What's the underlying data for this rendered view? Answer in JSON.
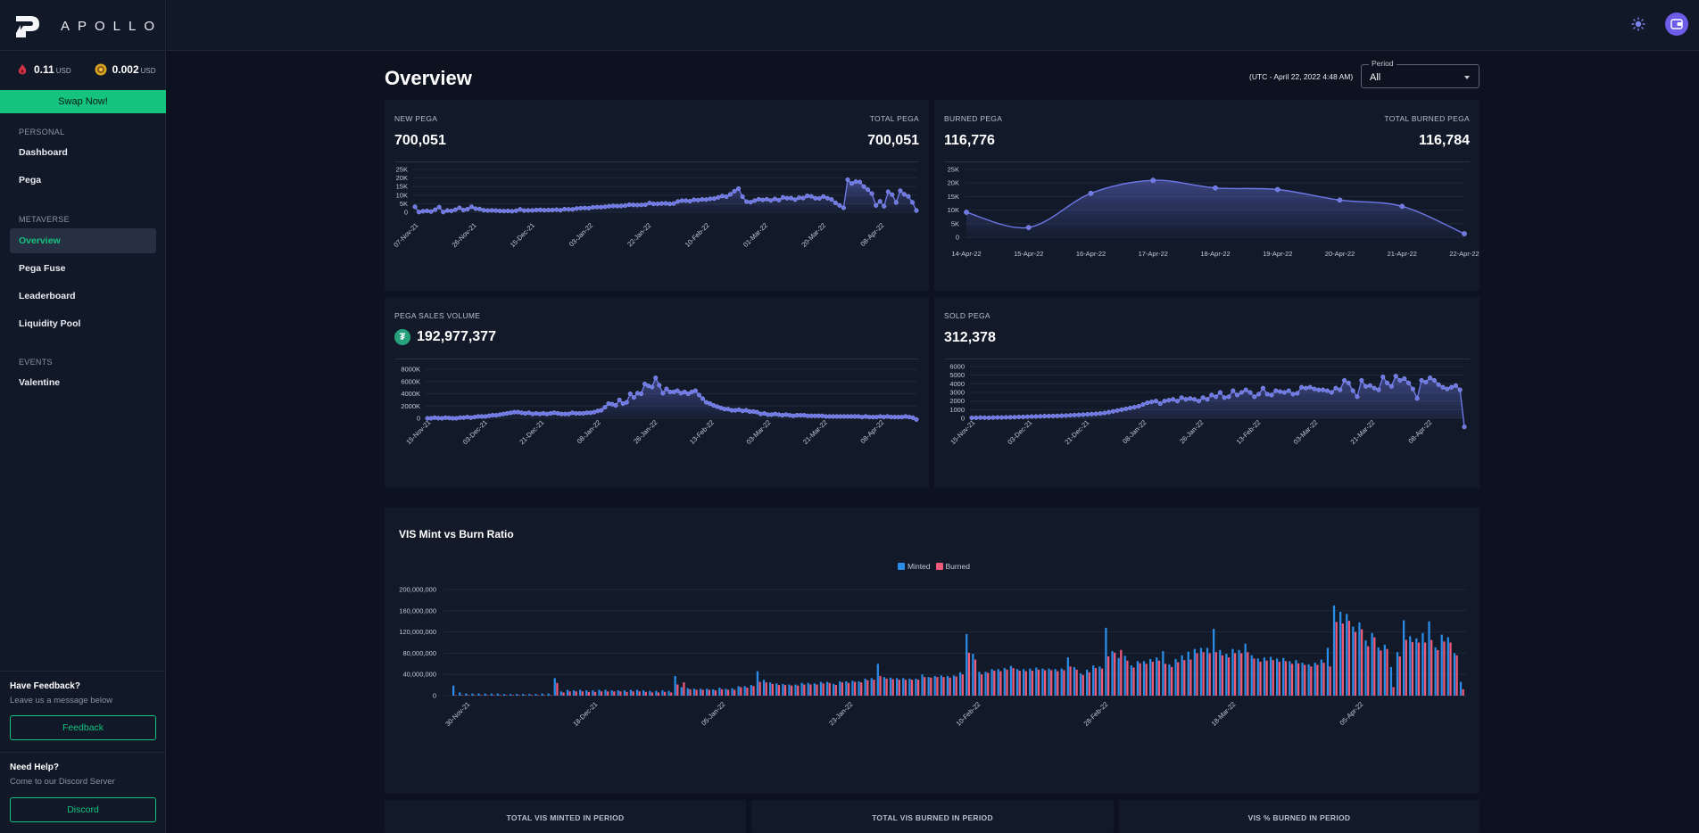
{
  "app": {
    "name": "APOLLO"
  },
  "prices": [
    {
      "value": "0.11",
      "unit": "USD",
      "icon": "vis-token-icon"
    },
    {
      "value": "0.002",
      "unit": "USD",
      "icon": "pgx-token-icon"
    }
  ],
  "swap_label": "Swap Now!",
  "nav": {
    "personal": "PERSONAL",
    "dashboard": "Dashboard",
    "pega": "Pega",
    "metaverse": "METAVERSE",
    "overview": "Overview",
    "pega_fuse": "Pega Fuse",
    "leaderboard": "Leaderboard",
    "liquidity_pool": "Liquidity Pool",
    "events": "EVENTS",
    "valentine": "Valentine"
  },
  "feedback": {
    "title": "Have Feedback?",
    "subtitle": "Leave us a message below",
    "button": "Feedback"
  },
  "help": {
    "title": "Need Help?",
    "subtitle": "Come to our Discord Server",
    "button": "Discord"
  },
  "colors": {
    "accent": "#14c37e",
    "line": "#6d77e6",
    "minted": "#2a8ce6",
    "burned": "#ee5a78"
  },
  "page": {
    "title": "Overview",
    "utc": "(UTC - April 22, 2022 4:48 AM)",
    "period_label": "Period",
    "period_value": "All"
  },
  "cards": {
    "new_pega": {
      "label": "NEW PEGA",
      "value": "700,051",
      "total_label": "TOTAL PEGA",
      "total_value": "700,051"
    },
    "burned_pega": {
      "label": "BURNED PEGA",
      "value": "116,776",
      "total_label": "TOTAL BURNED PEGA",
      "total_value": "116,784"
    },
    "sales_volume": {
      "label": "PEGA SALES VOLUME",
      "value": "192,977,377",
      "icon": "tether-icon"
    },
    "sold_pega": {
      "label": "SOLD PEGA",
      "value": "312,378"
    }
  },
  "stats": {
    "minted": "TOTAL VIS MINTED IN PERIOD",
    "burned": "TOTAL VIS BURNED IN PERIOD",
    "pct": "VIS % BURNED IN PERIOD"
  },
  "chart_data": [
    {
      "id": "new_pega",
      "type": "line",
      "x_ticks": [
        "07-Nov-21",
        "26-Nov-21",
        "15-Dec-21",
        "03-Jan-22",
        "22-Jan-22",
        "10-Feb-22",
        "01-Mar-22",
        "20-Mar-22",
        "08-Apr-22"
      ],
      "y_ticks": [
        "25K",
        "20K",
        "15K",
        "10K",
        "5K",
        "0"
      ],
      "ylim": [
        0,
        25000
      ],
      "values": [
        3200,
        100,
        600,
        800,
        400,
        1500,
        3000,
        100,
        1000,
        800,
        1500,
        2600,
        1300,
        1800,
        3200,
        2100,
        1900,
        1200,
        1000,
        1100,
        1000,
        800,
        700,
        800,
        600,
        900,
        1700,
        1000,
        1100,
        1100,
        1300,
        1400,
        1200,
        1300,
        1300,
        1500,
        1200,
        1800,
        1700,
        1700,
        2200,
        2400,
        2500,
        2400,
        2900,
        3000,
        3000,
        3200,
        3500,
        3700,
        3600,
        3700,
        3900,
        4400,
        4300,
        4200,
        4300,
        4400,
        5400,
        4900,
        4900,
        5100,
        5200,
        4900,
        5100,
        6300,
        6800,
        6800,
        6500,
        7300,
        7100,
        7500,
        7400,
        7900,
        8000,
        8700,
        9500,
        9100,
        10500,
        12300,
        13800,
        9100,
        6200,
        5900,
        6800,
        7600,
        7200,
        7600,
        6900,
        7800,
        7100,
        8700,
        8200,
        8300,
        7400,
        8500,
        8300,
        9600,
        9300,
        8200,
        8100,
        9200,
        8200,
        7500,
        5500,
        4000,
        2600,
        19000,
        16800,
        17900,
        17700,
        15000,
        13200,
        10900,
        4000,
        6400,
        3500,
        12000,
        10300,
        5700,
        12600,
        10500,
        9300,
        5800,
        1000
      ]
    },
    {
      "id": "burned_pega",
      "type": "line",
      "categories": [
        "14-Apr-22",
        "15-Apr-22",
        "16-Apr-22",
        "17-Apr-22",
        "18-Apr-22",
        "19-Apr-22",
        "20-Apr-22",
        "21-Apr-22",
        "22-Apr-22"
      ],
      "y_ticks": [
        "25K",
        "20K",
        "15K",
        "10K",
        "5K",
        "0"
      ],
      "ylim": [
        0,
        25000
      ],
      "values": [
        9200,
        3600,
        16200,
        21000,
        18200,
        17600,
        13700,
        11400,
        1300
      ]
    },
    {
      "id": "sales_volume",
      "type": "line",
      "x_ticks": [
        "15-Nov-21",
        "03-Dec-21",
        "21-Dec-21",
        "08-Jan-22",
        "26-Jan-22",
        "13-Feb-22",
        "03-Mar-22",
        "21-Mar-22",
        "08-Apr-22"
      ],
      "y_ticks": [
        "8000K",
        "6000K",
        "4000K",
        "2000K",
        "0"
      ],
      "ylim": [
        0,
        8000000
      ],
      "values": [
        0,
        0,
        100000,
        20000,
        0,
        100000,
        50000,
        0,
        0,
        100000,
        100000,
        200000,
        100000,
        200000,
        300000,
        300000,
        300000,
        400000,
        500000,
        500000,
        600000,
        700000,
        800000,
        900000,
        1000000,
        1000000,
        900000,
        800000,
        900000,
        700000,
        800000,
        700000,
        800000,
        700000,
        800000,
        900000,
        800000,
        700000,
        700000,
        700000,
        900000,
        800000,
        800000,
        800000,
        900000,
        900000,
        1000000,
        1200000,
        1300000,
        1800000,
        2400000,
        2300000,
        2100000,
        3000000,
        2400000,
        2600000,
        4000000,
        3400000,
        4100000,
        4000000,
        5600000,
        5300000,
        5100000,
        6600000,
        5400000,
        4100000,
        4800000,
        4300000,
        4300000,
        4500000,
        4100000,
        4300000,
        4000000,
        4300000,
        4500000,
        3800000,
        3200000,
        2600000,
        2400000,
        2100000,
        1900000,
        1700000,
        1500000,
        1500000,
        1300000,
        1300000,
        1400000,
        1200000,
        1300000,
        1100000,
        1100000,
        1000000,
        700000,
        800000,
        600000,
        600000,
        700000,
        600000,
        500000,
        600000,
        500000,
        400000,
        500000,
        500000,
        500000,
        400000,
        400000,
        400000,
        400000,
        400000,
        300000,
        300000,
        300000,
        300000,
        300000,
        300000,
        300000,
        300000,
        300000,
        300000,
        200000,
        300000,
        200000,
        200000,
        200000,
        300000,
        200000,
        300000,
        200000,
        200000,
        200000,
        200000,
        300000,
        200000,
        100000,
        -200000
      ]
    },
    {
      "id": "sold_pega",
      "type": "line",
      "x_ticks": [
        "15-Nov-21",
        "03-Dec-21",
        "21-Dec-21",
        "08-Jan-22",
        "26-Jan-22",
        "13-Feb-22",
        "03-Mar-22",
        "21-Mar-22",
        "08-Apr-22"
      ],
      "y_ticks": [
        "6000",
        "5000",
        "4000",
        "3000",
        "2000",
        "1000",
        "0"
      ],
      "ylim": [
        0,
        6000
      ],
      "values": [
        50,
        60,
        80,
        70,
        60,
        80,
        100,
        90,
        110,
        120,
        130,
        150,
        160,
        180,
        200,
        210,
        230,
        250,
        260,
        270,
        280,
        300,
        320,
        350,
        380,
        400,
        430,
        460,
        490,
        520,
        560,
        620,
        700,
        800,
        900,
        1000,
        1100,
        1200,
        1300,
        1400,
        1600,
        1800,
        1900,
        2000,
        1700,
        2000,
        2100,
        2200,
        2000,
        2400,
        2200,
        2300,
        2200,
        2000,
        2400,
        2200,
        2700,
        2500,
        3000,
        2400,
        2500,
        3200,
        2700,
        3000,
        3300,
        3000,
        2500,
        2800,
        3500,
        2800,
        2700,
        3200,
        3100,
        3000,
        3200,
        2800,
        2900,
        3600,
        3500,
        3600,
        3400,
        3300,
        3300,
        3200,
        3000,
        3500,
        3300,
        4400,
        4100,
        3200,
        2500,
        4400,
        3700,
        3800,
        3500,
        3300,
        4800,
        4100,
        3700,
        4900,
        4400,
        4600,
        4100,
        3400,
        2300,
        4400,
        4200,
        4700,
        4400,
        3900,
        3600,
        3400,
        3600,
        3800,
        3300,
        -1000
      ]
    },
    {
      "id": "vis_mint_burn",
      "type": "bar",
      "title": "VIS Mint vs Burn Ratio",
      "x_ticks": [
        "30-Nov-21",
        "18-Dec-21",
        "05-Jan-22",
        "23-Jan-22",
        "10-Feb-22",
        "28-Feb-22",
        "18-Mar-22",
        "05-Apr-22"
      ],
      "y_ticks": [
        "200,000,000",
        "160,000,000",
        "120,000,000",
        "80,000,000",
        "40,000,000",
        "0"
      ],
      "ylim": [
        0,
        200000000
      ],
      "series": [
        {
          "name": "Minted",
          "values": [
            19000000,
            6000000,
            4000000,
            4000000,
            4000000,
            4000000,
            4000000,
            4000000,
            3000000,
            3000000,
            3000000,
            3000000,
            3000000,
            3000000,
            4000000,
            4000000,
            33000000,
            8000000,
            11000000,
            10000000,
            11000000,
            10000000,
            10000000,
            11000000,
            11000000,
            10000000,
            10000000,
            10000000,
            11000000,
            11000000,
            10000000,
            9000000,
            9000000,
            10000000,
            9000000,
            37000000,
            16000000,
            14000000,
            13000000,
            13000000,
            13000000,
            12000000,
            15000000,
            13000000,
            14000000,
            18000000,
            18000000,
            20000000,
            46000000,
            30000000,
            25000000,
            23000000,
            22000000,
            21000000,
            21000000,
            24000000,
            24000000,
            23000000,
            26000000,
            26000000,
            22000000,
            27000000,
            27000000,
            28000000,
            27000000,
            32000000,
            33000000,
            60000000,
            35000000,
            34000000,
            33000000,
            33000000,
            32000000,
            32000000,
            40000000,
            35000000,
            37000000,
            38000000,
            37000000,
            38000000,
            44000000,
            116000000,
            79000000,
            45000000,
            45000000,
            50000000,
            50000000,
            52000000,
            56000000,
            50000000,
            50000000,
            51000000,
            53000000,
            51000000,
            51000000,
            50000000,
            51000000,
            72000000,
            54000000,
            42000000,
            49000000,
            57000000,
            55000000,
            128000000,
            84000000,
            71000000,
            75000000,
            57000000,
            65000000,
            65000000,
            69000000,
            72000000,
            84000000,
            59000000,
            69000000,
            76000000,
            83000000,
            88000000,
            90000000,
            90000000,
            126000000,
            86000000,
            79000000,
            88000000,
            86000000,
            98000000,
            76000000,
            70000000,
            72000000,
            73000000,
            70000000,
            71000000,
            65000000,
            67000000,
            62000000,
            59000000,
            62000000,
            68000000,
            90000000,
            170000000,
            158000000,
            154000000,
            130000000,
            138000000,
            104000000,
            118000000,
            91000000,
            96000000,
            54000000,
            82000000,
            142000000,
            112000000,
            108000000,
            118000000,
            140000000,
            91000000,
            115000000,
            110000000,
            80000000,
            26000000
          ]
        },
        {
          "name": "Burned",
          "values": [
            1000000,
            1000000,
            1000000,
            1000000,
            1000000,
            1000000,
            1000000,
            1000000,
            1000000,
            1000000,
            1000000,
            1000000,
            1000000,
            1000000,
            1000000,
            1000000,
            24000000,
            6000000,
            8000000,
            8000000,
            8000000,
            7000000,
            7000000,
            8000000,
            8000000,
            8000000,
            8000000,
            7000000,
            8000000,
            8000000,
            7000000,
            6000000,
            6000000,
            7000000,
            6000000,
            21000000,
            25000000,
            12000000,
            11000000,
            11000000,
            11000000,
            10000000,
            12000000,
            11000000,
            11000000,
            16000000,
            15000000,
            18000000,
            26000000,
            25000000,
            22000000,
            20000000,
            20000000,
            19000000,
            19000000,
            21000000,
            21000000,
            21000000,
            23000000,
            24000000,
            20000000,
            25000000,
            24000000,
            26000000,
            25000000,
            29000000,
            30000000,
            37000000,
            32000000,
            31000000,
            30000000,
            30000000,
            30000000,
            30000000,
            35000000,
            34000000,
            35000000,
            35000000,
            34000000,
            36000000,
            40000000,
            81000000,
            68000000,
            40000000,
            43000000,
            47000000,
            46000000,
            49000000,
            52000000,
            47000000,
            46000000,
            47000000,
            49000000,
            48000000,
            48000000,
            46000000,
            48000000,
            55000000,
            49000000,
            39000000,
            44000000,
            52000000,
            51000000,
            74000000,
            81000000,
            86000000,
            66000000,
            53000000,
            61000000,
            60000000,
            64000000,
            66000000,
            60000000,
            54000000,
            63000000,
            67000000,
            68000000,
            80000000,
            82000000,
            80000000,
            82000000,
            76000000,
            72000000,
            80000000,
            80000000,
            82000000,
            70000000,
            64000000,
            66000000,
            67000000,
            64000000,
            65000000,
            60000000,
            61000000,
            58000000,
            55000000,
            58000000,
            62000000,
            55000000,
            139000000,
            136000000,
            141000000,
            120000000,
            125000000,
            93000000,
            110000000,
            85000000,
            88000000,
            16000000,
            74000000,
            105000000,
            101000000,
            100000000,
            100000000,
            105000000,
            86000000,
            102000000,
            100000000,
            76000000,
            12000000
          ]
        }
      ]
    }
  ]
}
